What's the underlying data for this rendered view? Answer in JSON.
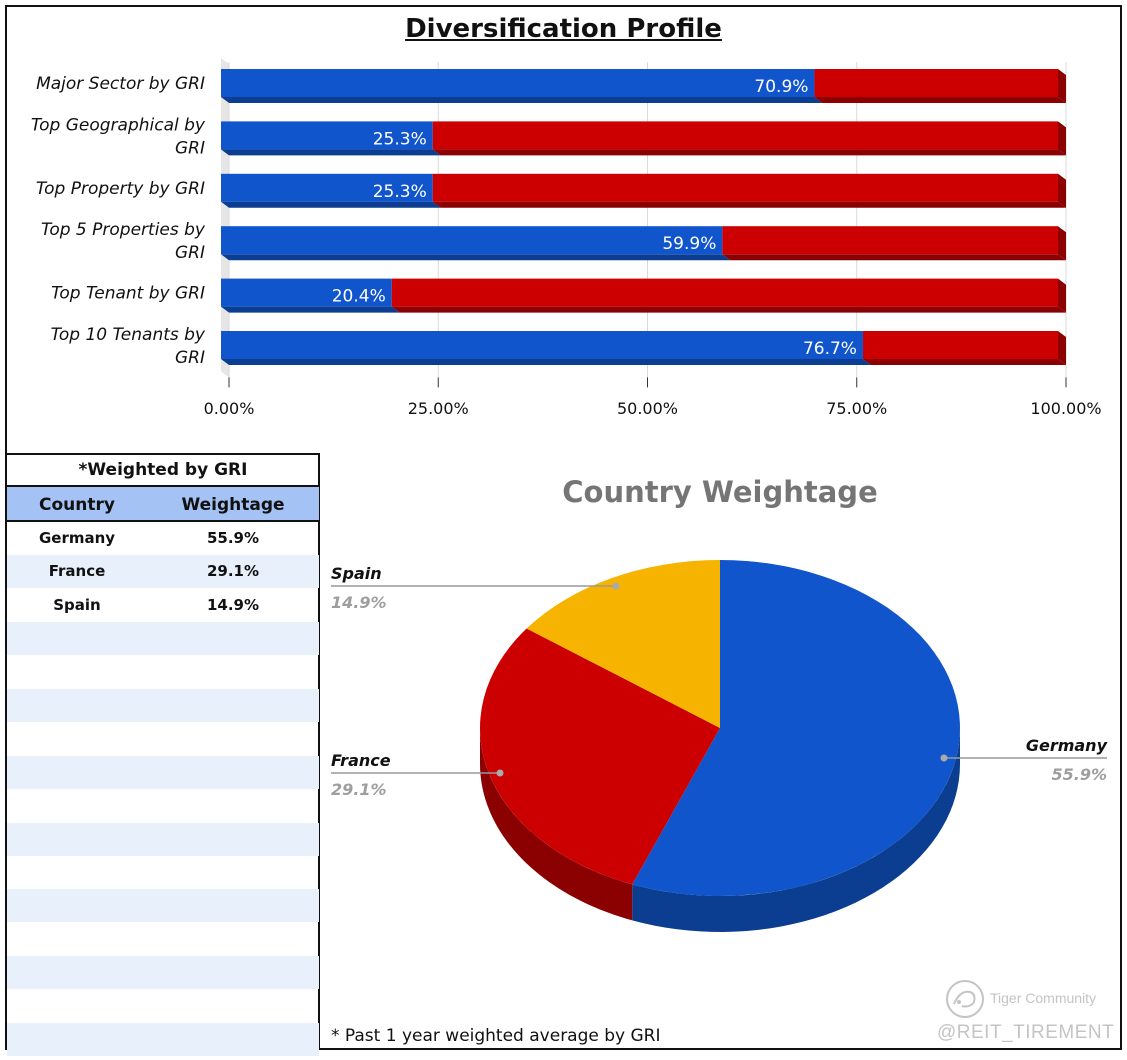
{
  "title": "Diversification Profile",
  "chart_data": [
    {
      "type": "bar",
      "orientation": "horizontal",
      "stacked": true,
      "categories": [
        "Major Sector by GRI",
        "Top Geographical by GRI",
        "Top Property by GRI",
        "Top 5 Properties by GRI",
        "Top Tenant by GRI",
        "Top 10 Tenants by GRI"
      ],
      "category_lines": [
        [
          "Major Sector by GRI"
        ],
        [
          "Top Geographical by",
          "GRI"
        ],
        [
          "Top Property by GRI"
        ],
        [
          "Top 5 Properties by",
          "GRI"
        ],
        [
          "Top Tenant by GRI"
        ],
        [
          "Top 10 Tenants by",
          "GRI"
        ]
      ],
      "series": [
        {
          "values": [
            70.9,
            25.3,
            25.3,
            59.9,
            20.4,
            76.7
          ],
          "labels": [
            "70.9%",
            "25.3%",
            "25.3%",
            "59.9%",
            "20.4%",
            "76.7%"
          ],
          "color": "#1155cc"
        },
        {
          "values": [
            29.1,
            74.7,
            74.7,
            40.1,
            79.6,
            23.3
          ],
          "color": "#cc0000"
        }
      ],
      "xlim": [
        0,
        100
      ],
      "xticks": [
        0,
        25,
        50,
        75,
        100
      ],
      "xtick_labels": [
        "0.00%",
        "25.00%",
        "50.00%",
        "75.00%",
        "100.00%"
      ],
      "grid": true,
      "style": "3d"
    },
    {
      "type": "pie",
      "title": "Country Weightage",
      "style": "3d",
      "slices": [
        {
          "label": "Germany",
          "value": 55.9,
          "value_label": "55.9%",
          "color": "#1155cc",
          "side_color": "#0b3d91"
        },
        {
          "label": "France",
          "value": 29.1,
          "value_label": "29.1%",
          "color": "#cc0000",
          "side_color": "#8b0000"
        },
        {
          "label": "Spain",
          "value": 14.9,
          "value_label": "14.9%",
          "color": "#f6b400",
          "side_color": "#c08c00"
        }
      ]
    }
  ],
  "table": {
    "caption": "*Weighted by GRI",
    "headers": [
      "Country",
      "Weightage"
    ],
    "rows": [
      [
        "Germany",
        "55.9%"
      ],
      [
        "France",
        "29.1%"
      ],
      [
        "Spain",
        "14.9%"
      ]
    ],
    "header_color": "#a4c2f4",
    "stripe_color": "#e8f0fb"
  },
  "footnote": "* Past 1 year weighted average by GRI",
  "watermark": {
    "brand": "Tiger Community",
    "handle": "@REIT_TIREMENT"
  }
}
